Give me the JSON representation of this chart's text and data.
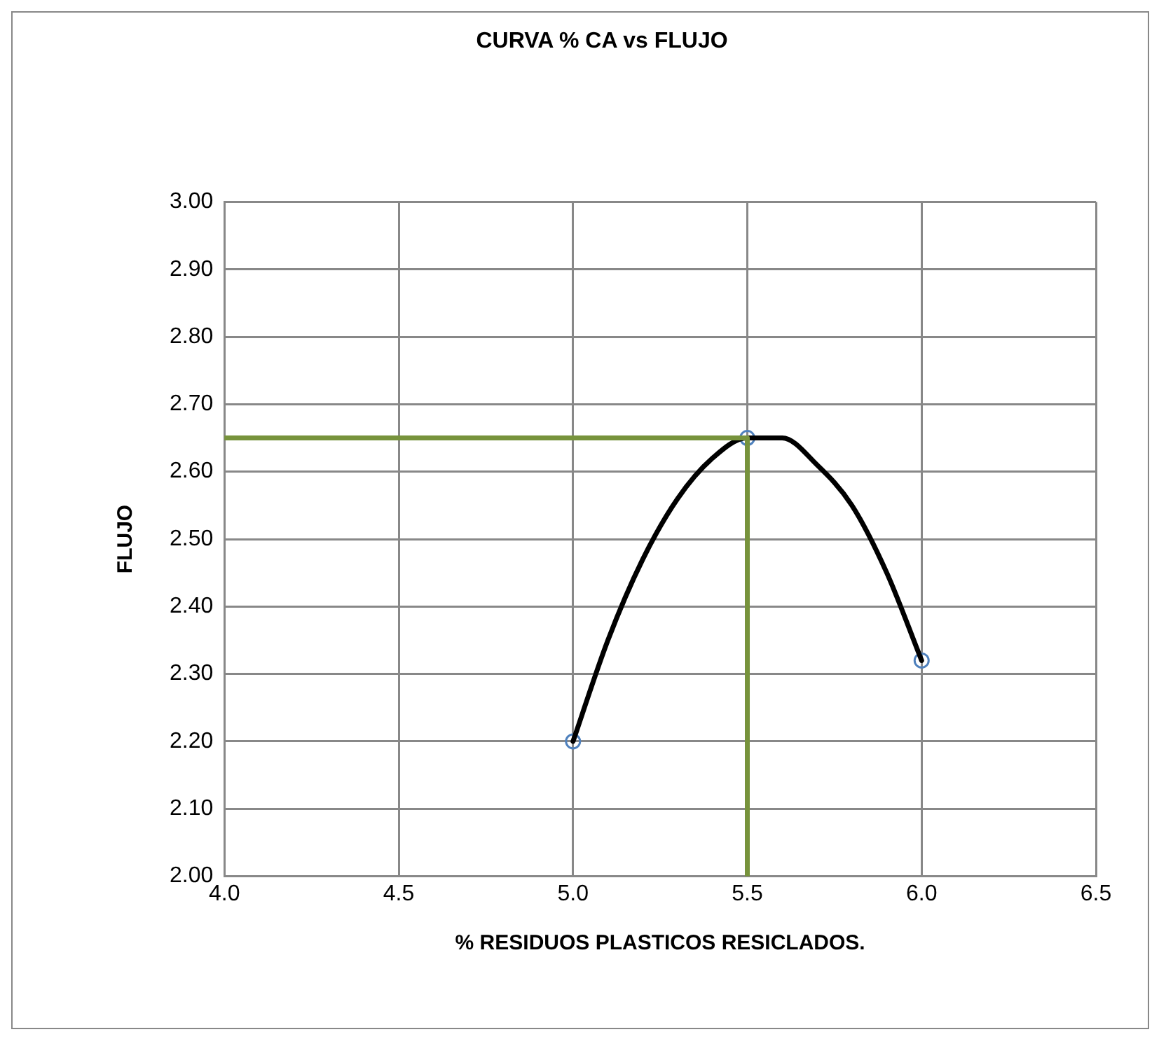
{
  "chart_data": {
    "type": "scatter",
    "title": "CURVA % CA vs FLUJO",
    "xlabel": "% RESIDUOS PLASTICOS RESICLADOS.",
    "ylabel": "FLUJO",
    "xlim": [
      4.0,
      6.5
    ],
    "xticks": [
      {
        "value": 4.0,
        "label": "4.0"
      },
      {
        "value": 4.5,
        "label": "4.5"
      },
      {
        "value": 5.0,
        "label": "5.0"
      },
      {
        "value": 5.5,
        "label": "5.5"
      },
      {
        "value": 6.0,
        "label": "6.0"
      },
      {
        "value": 6.5,
        "label": "6.5"
      }
    ],
    "ylim": [
      2.0,
      3.0
    ],
    "yticks": [
      {
        "value": 2.0,
        "label": "2.00"
      },
      {
        "value": 2.1,
        "label": "2.10"
      },
      {
        "value": 2.2,
        "label": "2.20"
      },
      {
        "value": 2.3,
        "label": "2.30"
      },
      {
        "value": 2.4,
        "label": "2.40"
      },
      {
        "value": 2.5,
        "label": "2.50"
      },
      {
        "value": 2.6,
        "label": "2.60"
      },
      {
        "value": 2.7,
        "label": "2.70"
      },
      {
        "value": 2.8,
        "label": "2.80"
      },
      {
        "value": 2.9,
        "label": "2.90"
      },
      {
        "value": 3.0,
        "label": "3.00"
      }
    ],
    "grid": true,
    "series": [
      {
        "type": "line",
        "color": "#77933c",
        "x": [
          4.0,
          5.5,
          5.5
        ],
        "values": [
          2.65,
          2.65,
          2.0
        ],
        "marker": "none"
      },
      {
        "type": "line",
        "color": "#000000",
        "x": [
          5.0,
          5.1,
          5.2,
          5.3,
          5.4,
          5.5,
          5.6,
          5.7,
          5.8,
          5.9,
          6.0
        ],
        "values": [
          2.2,
          2.35,
          2.47,
          2.56,
          2.62,
          2.65,
          2.65,
          2.61,
          2.55,
          2.45,
          2.32
        ],
        "marker": "none"
      },
      {
        "color": "#4f81bd",
        "x": [
          5.0,
          5.5,
          6.0
        ],
        "values": [
          2.2,
          2.65,
          2.32
        ],
        "marker": "circle"
      }
    ]
  }
}
